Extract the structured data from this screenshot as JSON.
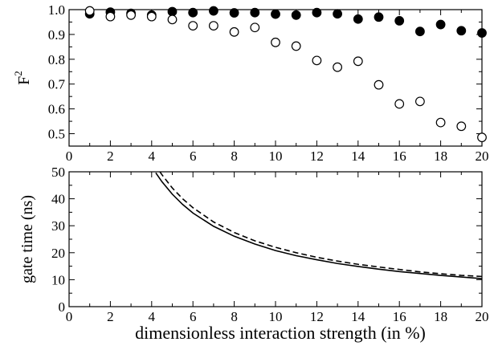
{
  "chart_data": [
    {
      "type": "scatter",
      "ylabel": "F",
      "ylabel_superscript": "2",
      "xlim": [
        0,
        20
      ],
      "ylim": [
        0.45,
        1.0
      ],
      "x_ticks": [
        0,
        2,
        4,
        6,
        8,
        10,
        12,
        14,
        16,
        18,
        20
      ],
      "y_ticks": [
        0.5,
        0.6,
        0.7,
        0.8,
        0.9,
        1.0
      ],
      "y_tick_labels": [
        "0.5",
        "0.6",
        "0.7",
        "0.8",
        "0.9",
        "1.0"
      ],
      "series": [
        {
          "marker": "filled-circle",
          "x": [
            1,
            2,
            3,
            4,
            5,
            6,
            7,
            8,
            9,
            10,
            11,
            12,
            13,
            14,
            15,
            16,
            17,
            18,
            19,
            20
          ],
          "y": [
            0.983,
            0.99,
            0.985,
            0.978,
            0.992,
            0.988,
            0.995,
            0.987,
            0.988,
            0.982,
            0.978,
            0.988,
            0.983,
            0.962,
            0.97,
            0.955,
            0.912,
            0.94,
            0.915,
            0.906
          ]
        },
        {
          "marker": "open-circle",
          "x": [
            1,
            2,
            3,
            4,
            5,
            6,
            7,
            8,
            9,
            10,
            11,
            12,
            13,
            14,
            15,
            16,
            17,
            18,
            19,
            20
          ],
          "y": [
            0.995,
            0.972,
            0.978,
            0.972,
            0.96,
            0.935,
            0.935,
            0.91,
            0.928,
            0.868,
            0.853,
            0.795,
            0.768,
            0.792,
            0.697,
            0.62,
            0.63,
            0.545,
            0.53,
            0.485
          ]
        }
      ]
    },
    {
      "type": "line",
      "ylabel": "gate time  (ns)",
      "xlabel": "dimensionless interaction strength  (in %)",
      "xlim": [
        0,
        20
      ],
      "ylim": [
        0,
        50
      ],
      "x_ticks": [
        0,
        2,
        4,
        6,
        8,
        10,
        12,
        14,
        16,
        18,
        20
      ],
      "y_ticks": [
        0,
        10,
        20,
        30,
        40,
        50
      ],
      "series": [
        {
          "style": "solid",
          "x": [
            4.2,
            4.5,
            5,
            5.5,
            6,
            7,
            8,
            9,
            10,
            11,
            12,
            13,
            14,
            15,
            16,
            17,
            18,
            19,
            20
          ],
          "y": [
            49.6,
            46.3,
            41.7,
            37.9,
            34.7,
            29.8,
            26.1,
            23.2,
            20.8,
            18.9,
            17.4,
            16.0,
            14.9,
            13.9,
            13.0,
            12.3,
            11.6,
            11.0,
            10.4
          ]
        },
        {
          "style": "dashed",
          "x": [
            4.4,
            4.5,
            5,
            5.5,
            6,
            7,
            8,
            9,
            10,
            11,
            12,
            13,
            14,
            15,
            16,
            17,
            18,
            19,
            20
          ],
          "y": [
            50.0,
            48.9,
            44.0,
            40.0,
            36.7,
            31.4,
            27.5,
            24.4,
            22.0,
            20.0,
            18.3,
            16.9,
            15.7,
            14.7,
            13.8,
            12.9,
            12.2,
            11.6,
            11.2
          ]
        }
      ]
    }
  ]
}
